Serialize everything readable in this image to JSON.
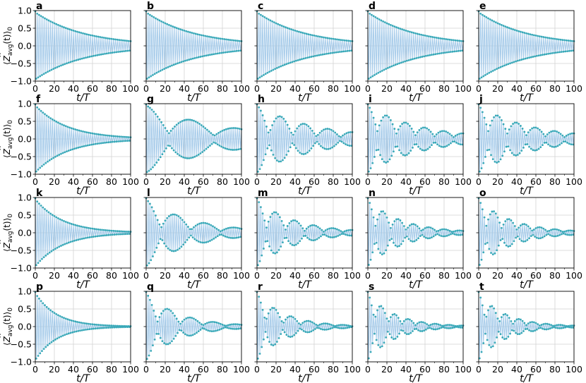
{
  "figure": {
    "colors": {
      "marker": "#38a8b8",
      "line": "#9fc7e8",
      "grid": "#d3d3d3",
      "axis": "#000000"
    }
  },
  "chart_data": {
    "type": "line",
    "grid": true,
    "xlabel": "t/T",
    "ylabel_prefix": "⟨",
    "ylabel_Z": "Z",
    "ylabel_hat": "^",
    "ylabel_sub": "avg",
    "ylabel_arg": "(t)⟩",
    "ylabel_sub0": "0",
    "xlim": [
      0,
      100
    ],
    "ylim": [
      -1,
      1
    ],
    "xticks": [
      "0",
      "20",
      "40",
      "60",
      "80",
      "100"
    ],
    "yticks": [
      "−1.0",
      "−0.5",
      "0.0",
      "0.5",
      "1.0"
    ],
    "marker": "point",
    "panels": [
      {
        "label": "a",
        "decay": 0.0197,
        "beat": 0,
        "mod": 0.0,
        "floor": 0.06
      },
      {
        "label": "b",
        "decay": 0.0197,
        "beat": 0,
        "mod": 0.0,
        "floor": 0.06
      },
      {
        "label": "c",
        "decay": 0.0197,
        "beat": 0,
        "mod": 0.0,
        "floor": 0.06
      },
      {
        "label": "d",
        "decay": 0.0197,
        "beat": 0,
        "mod": 0.0,
        "floor": 0.06
      },
      {
        "label": "e",
        "decay": 0.0197,
        "beat": 0,
        "mod": 0.0,
        "floor": 0.06
      },
      {
        "label": "f",
        "decay": 0.03,
        "beat": 0,
        "mod": 0.0,
        "floor": 0.05
      },
      {
        "label": "g",
        "decay": 0.012,
        "beat": 0.021,
        "mod": 0.78,
        "floor": 0.03
      },
      {
        "label": "h",
        "decay": 0.016,
        "beat": 0.04,
        "mod": 0.82,
        "floor": 0.02
      },
      {
        "label": "i",
        "decay": 0.018,
        "beat": 0.05,
        "mod": 0.72,
        "floor": 0.03
      },
      {
        "label": "j",
        "decay": 0.018,
        "beat": 0.05,
        "mod": 0.72,
        "floor": 0.03
      },
      {
        "label": "k",
        "decay": 0.035,
        "beat": 0,
        "mod": 0.0,
        "floor": 0.03
      },
      {
        "label": "l",
        "decay": 0.02,
        "beat": 0.032,
        "mod": 0.8,
        "floor": 0.02
      },
      {
        "label": "m",
        "decay": 0.025,
        "beat": 0.05,
        "mod": 0.8,
        "floor": 0.02
      },
      {
        "label": "n",
        "decay": 0.028,
        "beat": 0.062,
        "mod": 0.75,
        "floor": 0.02
      },
      {
        "label": "o",
        "decay": 0.028,
        "beat": 0.062,
        "mod": 0.75,
        "floor": 0.02
      },
      {
        "label": "p",
        "decay": 0.045,
        "beat": 0,
        "mod": 0.0,
        "floor": 0.0
      },
      {
        "label": "q",
        "decay": 0.028,
        "beat": 0.042,
        "mod": 0.8,
        "floor": 0.0
      },
      {
        "label": "r",
        "decay": 0.033,
        "beat": 0.055,
        "mod": 0.8,
        "floor": 0.0
      },
      {
        "label": "s",
        "decay": 0.035,
        "beat": 0.07,
        "mod": 0.75,
        "floor": 0.0
      },
      {
        "label": "t",
        "decay": 0.035,
        "beat": 0.07,
        "mod": 0.75,
        "floor": 0.0
      }
    ]
  }
}
